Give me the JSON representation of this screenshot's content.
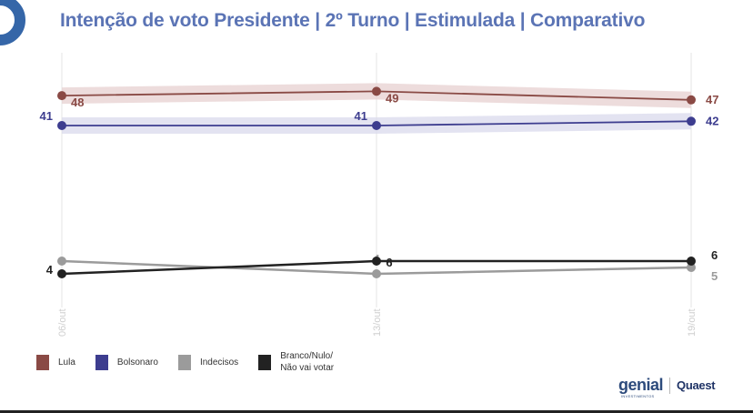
{
  "title": "Intenção de voto Presidente | 2º Turno | Estimulada | Comparativo",
  "chart_data": {
    "type": "line",
    "title": "Intenção de voto Presidente | 2º Turno | Estimulada | Comparativo",
    "categories": [
      "06/out",
      "13/out",
      "19/out"
    ],
    "series": [
      {
        "name": "Lula",
        "values": [
          48,
          49,
          47
        ],
        "color": "#8a4a45",
        "band": "#e8d3d3",
        "labels": [
          "48",
          "49",
          "47"
        ]
      },
      {
        "name": "Bolsonaro",
        "values": [
          41,
          41,
          42
        ],
        "color": "#3d3d8f",
        "band": "#dcdcee",
        "labels": [
          "41",
          "41",
          "42"
        ]
      },
      {
        "name": "Indecisos",
        "values": [
          6,
          4,
          5
        ],
        "color": "#9b9b9b",
        "labels": [
          "",
          "4",
          "5"
        ]
      },
      {
        "name": "Branco/Nulo/\nNão vai votar",
        "values": [
          4,
          6,
          6
        ],
        "color": "#222222",
        "labels": [
          "4",
          "6",
          "6"
        ]
      }
    ],
    "legend_position": "bottom-left",
    "grid": "vertical-only"
  },
  "legend": [
    {
      "label": "Lula",
      "color": "#8a4a45"
    },
    {
      "label": "Bolsonaro",
      "color": "#3d3d8f"
    },
    {
      "label": "Indecisos",
      "color": "#9b9b9b"
    },
    {
      "label": "Branco/Nulo/\nNão vai votar",
      "color": "#222222"
    }
  ],
  "sponsors": {
    "genial": "genial",
    "genial_sub": "INVESTIMENTOS",
    "quaest": "Quaest"
  }
}
